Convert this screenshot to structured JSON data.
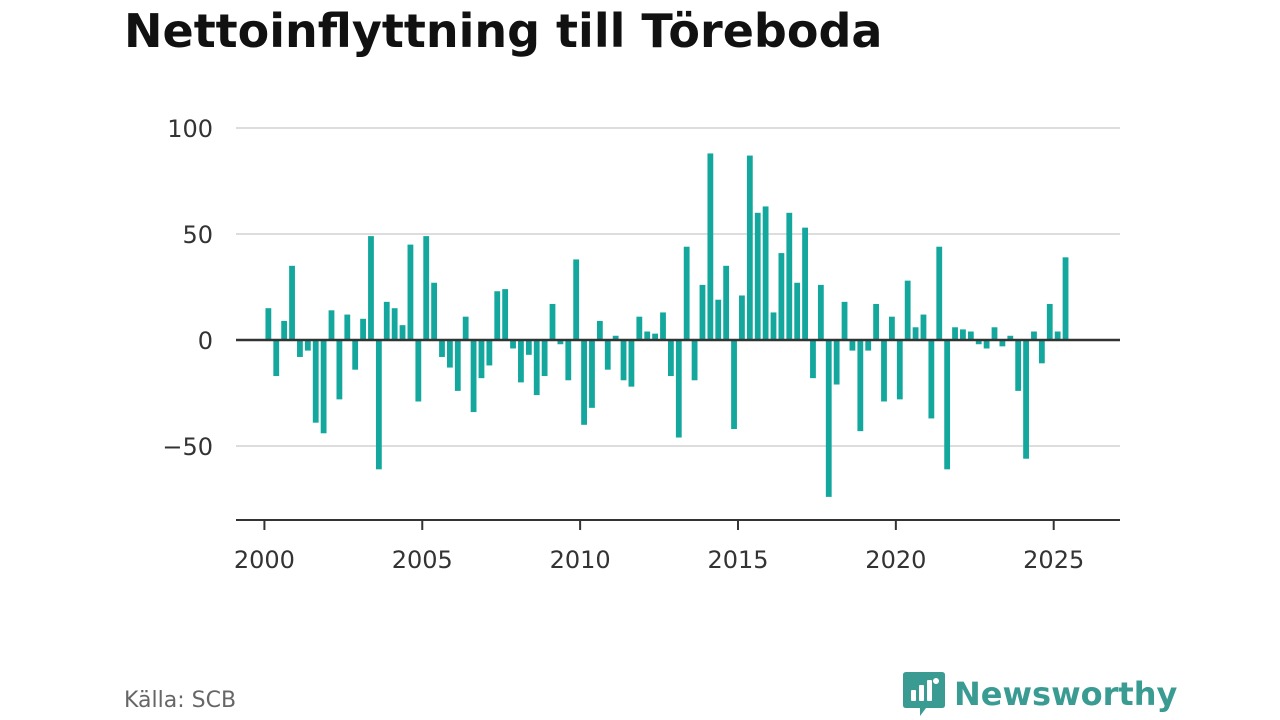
{
  "header": {
    "title": "Nettoinflyttning till Töreboda"
  },
  "footer": {
    "source": "Källa: SCB",
    "brand": "Newsworthy"
  },
  "colors": {
    "bar": "#13a79d",
    "grid": "#dddddd",
    "axis": "#333333",
    "brand": "#3a9b93"
  },
  "chart_data": {
    "type": "bar",
    "title": "Nettoinflyttning till Töreboda",
    "xlabel": "",
    "ylabel": "",
    "x_ticks": [
      2000,
      2005,
      2010,
      2015,
      2020,
      2025
    ],
    "y_ticks": [
      100,
      50,
      0,
      -50
    ],
    "y_tick_labels": [
      "100",
      "50",
      "0",
      "−50"
    ],
    "xlim": [
      1999.1,
      2027.1
    ],
    "ylim": [
      -85,
      100
    ],
    "grid": true,
    "legend": "none",
    "x": [
      "2000-Q1",
      "2000-Q2",
      "2000-Q3",
      "2000-Q4",
      "2001-Q1",
      "2001-Q2",
      "2001-Q3",
      "2001-Q4",
      "2002-Q1",
      "2002-Q2",
      "2002-Q3",
      "2002-Q4",
      "2003-Q1",
      "2003-Q2",
      "2003-Q3",
      "2003-Q4",
      "2004-Q1",
      "2004-Q2",
      "2004-Q3",
      "2004-Q4",
      "2005-Q1",
      "2005-Q2",
      "2005-Q3",
      "2005-Q4",
      "2006-Q1",
      "2006-Q2",
      "2006-Q3",
      "2006-Q4",
      "2007-Q1",
      "2007-Q2",
      "2007-Q3",
      "2007-Q4",
      "2008-Q1",
      "2008-Q2",
      "2008-Q3",
      "2008-Q4",
      "2009-Q1",
      "2009-Q2",
      "2009-Q3",
      "2009-Q4",
      "2010-Q1",
      "2010-Q2",
      "2010-Q3",
      "2010-Q4",
      "2011-Q1",
      "2011-Q2",
      "2011-Q3",
      "2011-Q4",
      "2012-Q1",
      "2012-Q2",
      "2012-Q3",
      "2012-Q4",
      "2013-Q1",
      "2013-Q2",
      "2013-Q3",
      "2013-Q4",
      "2014-Q1",
      "2014-Q2",
      "2014-Q3",
      "2014-Q4",
      "2015-Q1",
      "2015-Q2",
      "2015-Q3",
      "2015-Q4",
      "2016-Q1",
      "2016-Q2",
      "2016-Q3",
      "2016-Q4",
      "2017-Q1",
      "2017-Q2",
      "2017-Q3",
      "2017-Q4",
      "2018-Q1",
      "2018-Q2",
      "2018-Q3",
      "2018-Q4",
      "2019-Q1",
      "2019-Q2",
      "2019-Q3",
      "2019-Q4",
      "2020-Q1",
      "2020-Q2",
      "2020-Q3",
      "2020-Q4",
      "2021-Q1",
      "2021-Q2",
      "2021-Q3",
      "2021-Q4",
      "2022-Q1",
      "2022-Q2",
      "2022-Q3",
      "2022-Q4",
      "2023-Q1",
      "2023-Q2",
      "2023-Q3",
      "2023-Q4",
      "2024-Q1",
      "2024-Q2",
      "2024-Q3",
      "2024-Q4",
      "2025-Q1",
      "2025-Q2"
    ],
    "values": [
      15,
      -17,
      9,
      35,
      -8,
      -5,
      -39,
      -44,
      14,
      -28,
      12,
      -14,
      10,
      49,
      -61,
      18,
      15,
      7,
      45,
      -29,
      49,
      27,
      -8,
      -13,
      -24,
      11,
      -34,
      -18,
      -12,
      23,
      24,
      -4,
      -20,
      -7,
      -26,
      -17,
      17,
      -2,
      -19,
      38,
      -40,
      -32,
      9,
      -14,
      2,
      -19,
      -22,
      11,
      4,
      3,
      13,
      -17,
      -46,
      44,
      -19,
      26,
      88,
      19,
      35,
      -42,
      21,
      87,
      60,
      63,
      13,
      41,
      60,
      27,
      53,
      -18,
      26,
      -74,
      -21,
      18,
      -5,
      -43,
      -5,
      17,
      -29,
      11,
      -28,
      28,
      6,
      12,
      -37,
      44,
      -61,
      6,
      5,
      4,
      -2,
      -4,
      6,
      -3,
      2,
      -24,
      -56,
      4,
      -11,
      17,
      4,
      39
    ]
  }
}
